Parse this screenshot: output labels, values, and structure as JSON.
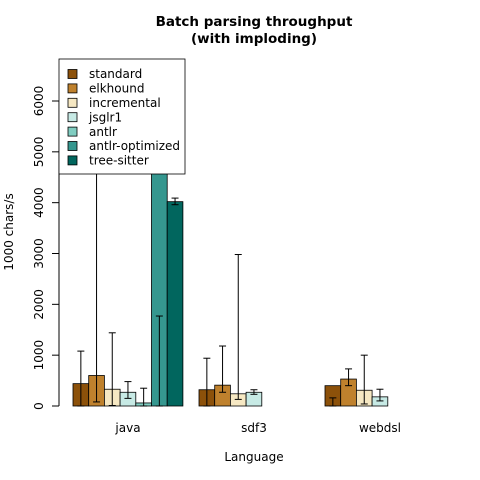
{
  "chart_data": {
    "type": "bar",
    "title": "Batch parsing throughput",
    "subtitle": "(with imploding)",
    "xlabel": "Language",
    "ylabel": "1000 chars/s",
    "ylim": [
      0,
      6800
    ],
    "yticks": [
      0,
      1000,
      2000,
      3000,
      4000,
      5000,
      6000
    ],
    "grid": false,
    "legend_position": "top-left",
    "categories": [
      "java",
      "sdf3",
      "webdsl"
    ],
    "series": [
      {
        "name": "standard",
        "color": "#8c510a",
        "values": [
          440,
          320,
          400
        ],
        "err_low": [
          0,
          0,
          0
        ],
        "err_high": [
          1080,
          940,
          160
        ]
      },
      {
        "name": "elkhound",
        "color": "#bf812d",
        "values": [
          600,
          410,
          530
        ],
        "err_low": [
          80,
          270,
          400
        ],
        "err_high": [
          6780,
          1180,
          730
        ]
      },
      {
        "name": "incremental",
        "color": "#f6e8c3",
        "values": [
          330,
          240,
          310
        ],
        "err_low": [
          10,
          130,
          40
        ],
        "err_high": [
          1440,
          2980,
          1000
        ]
      },
      {
        "name": "jsglr1",
        "color": "#c7eae5",
        "values": [
          270,
          270,
          180
        ],
        "err_low": [
          150,
          230,
          100
        ],
        "err_high": [
          480,
          320,
          330
        ]
      },
      {
        "name": "antlr",
        "color": "#80cdc1",
        "values": [
          60,
          null,
          null
        ],
        "err_low": [
          0,
          null,
          null
        ],
        "err_high": [
          350,
          null,
          null
        ]
      },
      {
        "name": "antlr-optimized",
        "color": "#35978f",
        "values": [
          5800,
          null,
          null
        ],
        "err_low": [
          0,
          null,
          null
        ],
        "err_high": [
          1770,
          null,
          null
        ]
      },
      {
        "name": "tree-sitter",
        "color": "#01665e",
        "values": [
          4020,
          null,
          null
        ],
        "err_low": [
          3960,
          null,
          null
        ],
        "err_high": [
          4090,
          null,
          null
        ]
      }
    ]
  }
}
